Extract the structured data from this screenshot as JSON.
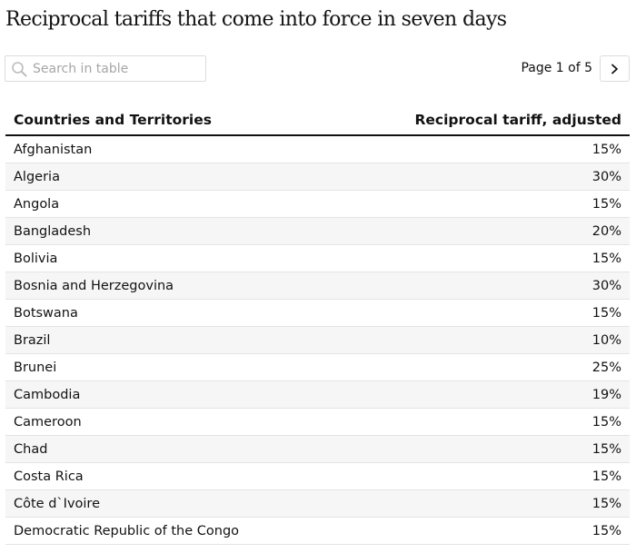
{
  "title": "Reciprocal tariffs that come into force in seven days",
  "search": {
    "placeholder": "Search in table",
    "value": ""
  },
  "pagination": {
    "label": "Page 1 of 5",
    "current_page": 1,
    "total_pages": 5
  },
  "table": {
    "columns": [
      "Countries and Territories",
      "Reciprocal tariff, adjusted"
    ],
    "rows": [
      {
        "country": "Afghanistan",
        "tariff": "15%"
      },
      {
        "country": "Algeria",
        "tariff": "30%"
      },
      {
        "country": "Angola",
        "tariff": "15%"
      },
      {
        "country": "Bangladesh",
        "tariff": "20%"
      },
      {
        "country": "Bolivia",
        "tariff": "15%"
      },
      {
        "country": "Bosnia and Herzegovina",
        "tariff": "30%"
      },
      {
        "country": "Botswana",
        "tariff": "15%"
      },
      {
        "country": "Brazil",
        "tariff": "10%"
      },
      {
        "country": "Brunei",
        "tariff": "25%"
      },
      {
        "country": "Cambodia",
        "tariff": "19%"
      },
      {
        "country": "Cameroon",
        "tariff": "15%"
      },
      {
        "country": "Chad",
        "tariff": "15%"
      },
      {
        "country": "Costa Rica",
        "tariff": "15%"
      },
      {
        "country": "Côte d`Ivoire",
        "tariff": "15%"
      },
      {
        "country": "Democratic Republic of the Congo",
        "tariff": "15%"
      }
    ]
  },
  "icons": {
    "search": "search-icon",
    "next": "chevron-right-icon"
  }
}
